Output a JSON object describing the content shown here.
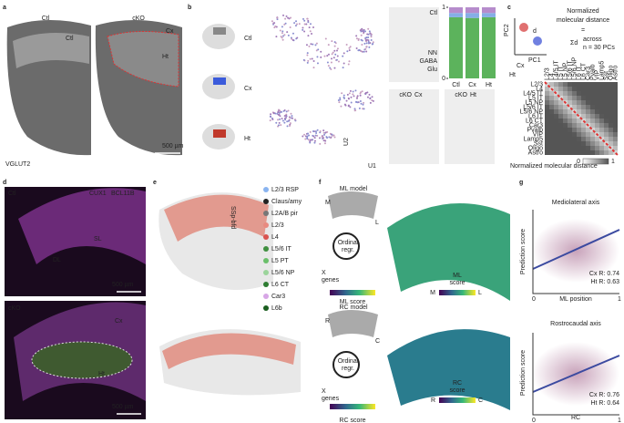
{
  "panel_labels": [
    "a",
    "b",
    "c",
    "d",
    "e",
    "f",
    "g"
  ],
  "a": {
    "ctl": "Ctl",
    "cko": "cKO",
    "ctl_pointer": "Ctl",
    "cx": "Cx",
    "ht": "Ht",
    "stain": "VGLUT2",
    "scale": "500 µm"
  },
  "b": {
    "schematic": [
      "Ctl",
      "Cx",
      "Ht"
    ],
    "u1": "U1",
    "u2": "U2",
    "umap_ctl": "Ctl",
    "cko_cx": [
      "cKO",
      "Cx"
    ],
    "cko_ht": [
      "cKO",
      "Ht"
    ]
  },
  "chart_data": {
    "type": "stacked-bar",
    "categories": [
      "Ctl",
      "Cx",
      "Ht"
    ],
    "series": [
      {
        "name": "Glu",
        "color": "#5cb35c",
        "values": [
          0.86,
          0.85,
          0.86
        ]
      },
      {
        "name": "GABA",
        "color": "#86aee6",
        "values": [
          0.06,
          0.07,
          0.06
        ]
      },
      {
        "name": "NN",
        "color": "#b68ccc",
        "values": [
          0.08,
          0.08,
          0.08
        ]
      }
    ],
    "ylim": [
      0,
      1
    ],
    "yticks": [
      0,
      1
    ]
  },
  "c": {
    "title": [
      "Normalized",
      "molecular distance"
    ],
    "eq": "=",
    "sum": "Σd",
    "across": "across",
    "n": "n = 30 PCs",
    "pc1": "PC1",
    "pc2": "PC2",
    "d": "d",
    "cx": "Cx",
    "ht": "Ht",
    "rows": [
      {
        "label": "L2/3",
        "color": "#4caf50"
      },
      {
        "label": "L4",
        "color": "#4caf50"
      },
      {
        "label": "L4/5 IT",
        "color": "#4caf50"
      },
      {
        "label": "L5 IT",
        "color": "#4caf50"
      },
      {
        "label": "L5 NP",
        "color": "#4caf50"
      },
      {
        "label": "L5/6 IT",
        "color": "#4caf50"
      },
      {
        "label": "L5/6 NP",
        "color": "#4caf50"
      },
      {
        "label": "L6 IT",
        "color": "#4caf50"
      },
      {
        "label": "L6 CT",
        "color": "#4caf50"
      },
      {
        "label": "Car3",
        "color": "#4caf50"
      },
      {
        "label": "Pvalb",
        "color": "#6a9de0"
      },
      {
        "label": "VIP",
        "color": "#6a9de0"
      },
      {
        "label": "Lamp5",
        "color": "#6a9de0"
      },
      {
        "label": "Sst",
        "color": "#6a9de0"
      },
      {
        "label": "Oligo",
        "color": "#b07acc"
      },
      {
        "label": "Astro",
        "color": "#b07acc"
      }
    ],
    "colorbar_label": "Normalized molecular distance",
    "cb0": "0",
    "cb1": "1"
  },
  "d": {
    "ctl": "Ctl",
    "m1": "CUX1",
    "m2": "BCL11B",
    "sl": "SL",
    "dl": "DL",
    "scale1": "500 µm",
    "cko": "cKO",
    "cx": "Cx",
    "ht": "Ht",
    "scale2": "500 µm"
  },
  "e": {
    "region": "SSp-bfd",
    "legend": [
      {
        "label": "L2/3 RSP",
        "color": "#8ab4f0"
      },
      {
        "label": "Claus/amy",
        "color": "#222222"
      },
      {
        "label": "L2A/B pir",
        "color": "#777777"
      },
      {
        "label": "L2/3",
        "color": "#e88a80"
      },
      {
        "label": "L4",
        "color": "#d9534f"
      },
      {
        "label": "L5/6 IT",
        "color": "#3f8f3f"
      },
      {
        "label": "L5 PT",
        "color": "#6abf6a"
      },
      {
        "label": "L5/6 NP",
        "color": "#9bd49b"
      },
      {
        "label": "L6 CT",
        "color": "#2e7d32"
      },
      {
        "label": "Car3",
        "color": "#d7a6e6"
      },
      {
        "label": "L6b",
        "color": "#1b5e20"
      }
    ]
  },
  "f": {
    "ml": {
      "title": "ML model",
      "m": "M",
      "l": "L",
      "regr": [
        "Ordinal",
        "regr."
      ],
      "genes": [
        "X",
        "genes"
      ],
      "score": "ML score",
      "map_score": [
        "ML",
        "score"
      ],
      "cb_m": "M",
      "cb_l": "L"
    },
    "rc": {
      "title": "RC model",
      "r": "R",
      "c": "C",
      "regr": [
        "Ordinal",
        "regr."
      ],
      "genes": [
        "X",
        "genes"
      ],
      "score": "RC score",
      "map_score": [
        "RC",
        "score"
      ],
      "cb_r": "R",
      "cb_c": "C"
    }
  },
  "g": {
    "ml": {
      "title": "Mediolateral axis",
      "ylabel": "Prediction score",
      "xlabel": "ML position",
      "x0": "0",
      "x1": "1",
      "cx": "Cx R: 0.74",
      "ht": "Ht R: 0.63"
    },
    "rc": {
      "title": "Rostrocaudal axis",
      "ylabel": "Prediction score",
      "xlabel": [
        "RC",
        "position"
      ],
      "x0": "0",
      "x1": "1",
      "cx": "Cx R: 0.76",
      "ht": "Ht R: 0.64"
    }
  }
}
